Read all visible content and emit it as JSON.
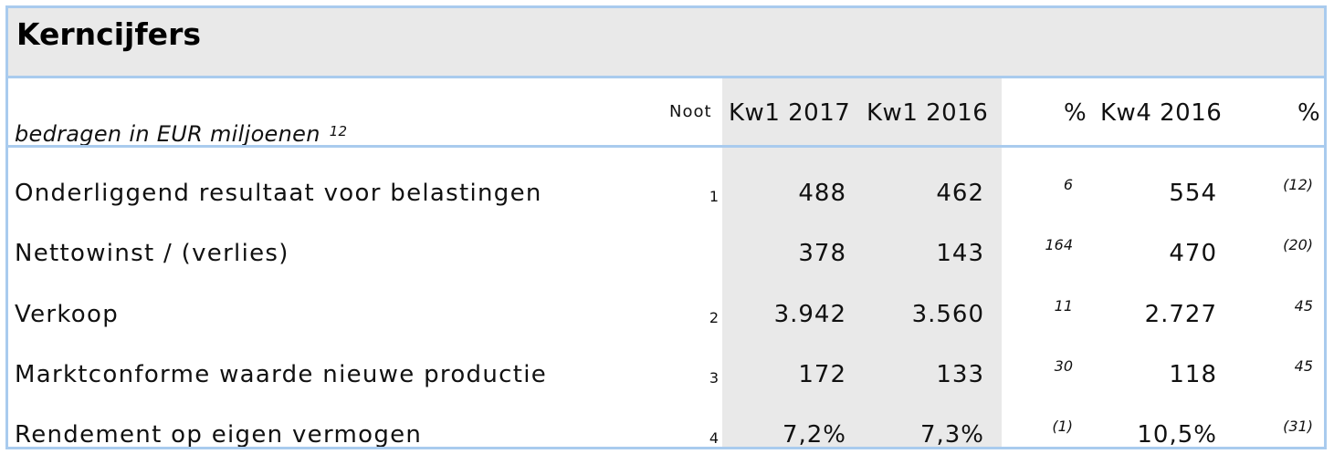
{
  "title": "Kerncijfers",
  "subtitle": "bedragen in EUR miljoenen",
  "subtitle_note": "12",
  "headers": {
    "noot": "Noot",
    "kw1_2017": "Kw1 2017",
    "kw1_2016": "Kw1 2016",
    "pct1": "%",
    "kw4_2016": "Kw4 2016",
    "pct2": "%"
  },
  "rows": [
    {
      "label": "Onderliggend resultaat voor belastingen",
      "noot": "1",
      "kw1_2017": "488",
      "kw1_2016": "462",
      "pct1": "6",
      "kw4_2016": "554",
      "pct2": "(12)"
    },
    {
      "label": "Nettowinst / (verlies)",
      "noot": "",
      "kw1_2017": "378",
      "kw1_2016": "143",
      "pct1": "164",
      "kw4_2016": "470",
      "pct2": "(20)"
    },
    {
      "label": "Verkoop",
      "noot": "2",
      "kw1_2017": "3.942",
      "kw1_2016": "3.560",
      "pct1": "11",
      "kw4_2016": "2.727",
      "pct2": "45"
    },
    {
      "label": "Marktconforme waarde nieuwe productie",
      "noot": "3",
      "kw1_2017": "172",
      "kw1_2016": "133",
      "pct1": "30",
      "kw4_2016": "118",
      "pct2": "45"
    },
    {
      "label": "Rendement op eigen vermogen",
      "noot": "4",
      "kw1_2017": "7,2%",
      "kw1_2016": "7,3%",
      "pct1": "(1)",
      "kw4_2016": "10,5%",
      "pct2": "(31)"
    }
  ]
}
